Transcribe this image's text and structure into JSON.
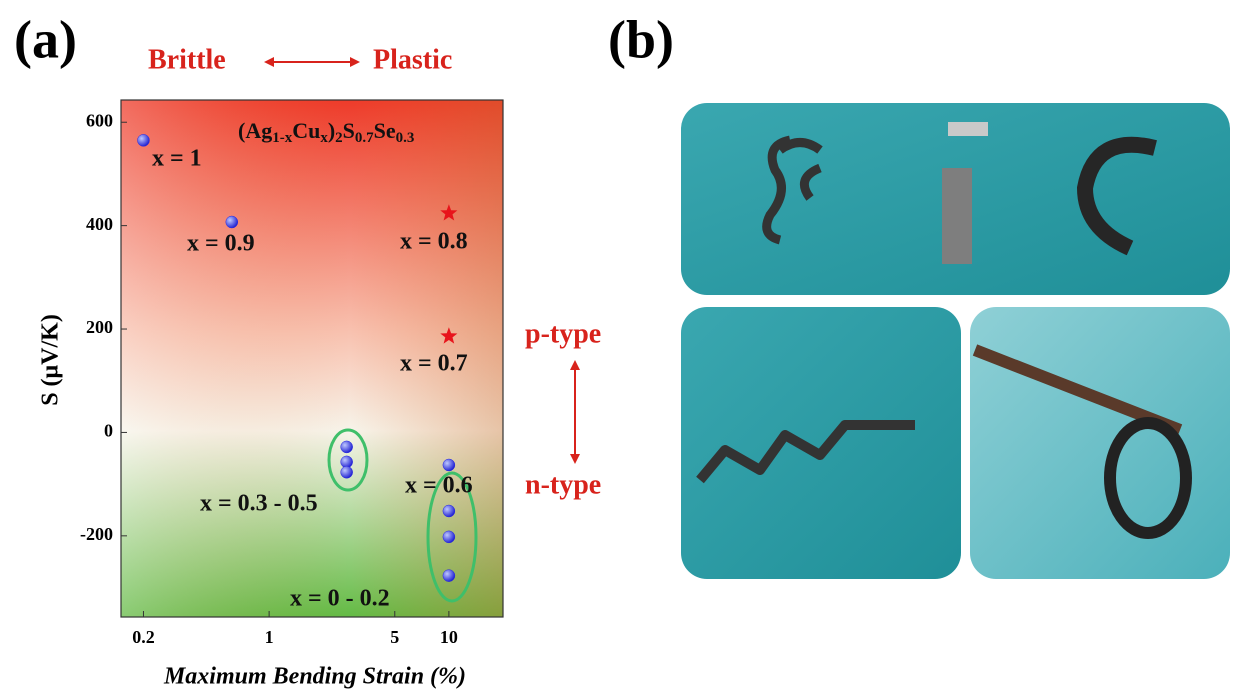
{
  "panel_a_label": "(a)",
  "panel_b_label": "(b)",
  "chart_data": {
    "type": "scatter",
    "header_left": "Brittle",
    "header_right": "Plastic",
    "formula": [
      "(Ag",
      "1-x",
      "Cu",
      "x",
      ")",
      "2",
      "S",
      "0.7",
      "Se",
      "0.3"
    ],
    "x_label": "Maximum Bending Strain (%)",
    "y_label": "S (μV/K)",
    "side_top": "p-type",
    "side_bottom": "n-type",
    "xscale": "log",
    "xlim": [
      0.15,
      20
    ],
    "xticks": [
      0.2,
      1,
      5,
      10
    ],
    "ylim": [
      -357,
      643
    ],
    "yticks": [
      -200,
      0,
      200,
      400,
      600
    ],
    "series": [
      {
        "color": "#2a2ae0",
        "marker": "circle",
        "x": [
          0.2,
          0.62,
          2.7,
          2.7,
          2.7,
          10,
          10,
          10,
          10
        ],
        "values": [
          565,
          407,
          -28,
          -57,
          -77,
          -63,
          -152,
          -202,
          -277
        ]
      },
      {
        "color": "#e8141b",
        "marker": "star",
        "x": [
          10,
          10
        ],
        "values": [
          424,
          186
        ]
      }
    ],
    "annotations": [
      "x = 1",
      "x = 0.9",
      "x = 0.8",
      "x = 0.7",
      "x = 0.3 - 0.5",
      "x = 0.6",
      "x = 0 - 0.2"
    ]
  }
}
